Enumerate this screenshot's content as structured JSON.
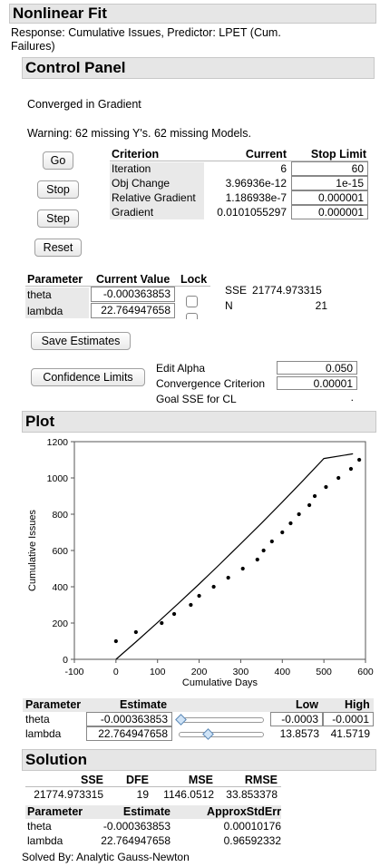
{
  "title": "Nonlinear Fit",
  "response_line1": "Response: Cumulative Issues, Predictor: LPET (Cum.",
  "response_line2": "Failures)",
  "control_panel": {
    "title": "Control Panel",
    "status": "Converged in Gradient",
    "warning": "Warning: 62 missing Y's. 62 missing Models.",
    "buttons": {
      "go": "Go",
      "stop": "Stop",
      "step": "Step",
      "reset": "Reset"
    },
    "criteria": {
      "headers": [
        "Criterion",
        "Current",
        "Stop Limit"
      ],
      "rows": [
        {
          "name": "Iteration",
          "current": "6",
          "limit": "60"
        },
        {
          "name": "Obj Change",
          "current": "3.96936e-12",
          "limit": "1e-15"
        },
        {
          "name": "Relative Gradient",
          "current": "1.186938e-7",
          "limit": "0.000001"
        },
        {
          "name": "Gradient",
          "current": "0.0101055297",
          "limit": "0.000001"
        }
      ]
    },
    "params": {
      "headers": [
        "Parameter",
        "Current Value",
        "Lock"
      ],
      "rows": [
        {
          "name": "theta",
          "value": "-0.000363853"
        },
        {
          "name": "lambda",
          "value": "22.764947658"
        }
      ]
    },
    "sse_label": "SSE",
    "sse_value": "21774.973315",
    "n_label": "N",
    "n_value": "21",
    "save_estimates": "Save Estimates",
    "confidence_limits": "Confidence Limits",
    "edit_alpha_label": "Edit Alpha",
    "edit_alpha_value": "0.050",
    "convergence_label": "Convergence Criterion",
    "convergence_value": "0.00001",
    "goal_sse_label": "Goal SSE for CL",
    "goal_sse_value": "."
  },
  "plot": {
    "title": "Plot"
  },
  "chart_data": {
    "type": "scatter",
    "xlabel": "Cumulative Days",
    "ylabel": "Cumulative Issues",
    "xlim": [
      -100,
      600
    ],
    "ylim": [
      0,
      1200
    ],
    "xticks": [
      -100,
      0,
      100,
      200,
      300,
      400,
      500,
      600
    ],
    "yticks": [
      0,
      200,
      400,
      600,
      800,
      1000,
      1200
    ],
    "points": [
      [
        0,
        100
      ],
      [
        48,
        150
      ],
      [
        110,
        200
      ],
      [
        140,
        250
      ],
      [
        180,
        300
      ],
      [
        200,
        350
      ],
      [
        235,
        400
      ],
      [
        270,
        450
      ],
      [
        305,
        500
      ],
      [
        340,
        550
      ],
      [
        355,
        600
      ],
      [
        375,
        650
      ],
      [
        400,
        700
      ],
      [
        420,
        750
      ],
      [
        440,
        800
      ],
      [
        465,
        850
      ],
      [
        478,
        900
      ],
      [
        505,
        950
      ],
      [
        535,
        1000
      ],
      [
        565,
        1050
      ],
      [
        585,
        1100
      ]
    ],
    "fit_curve": [
      [
        0,
        0
      ],
      [
        50,
        100
      ],
      [
        100,
        203
      ],
      [
        150,
        308
      ],
      [
        200,
        415
      ],
      [
        250,
        525
      ],
      [
        300,
        637
      ],
      [
        350,
        751
      ],
      [
        400,
        867
      ],
      [
        450,
        986
      ],
      [
        500,
        1107
      ],
      [
        570,
        1133
      ]
    ],
    "grid": false,
    "legend": "none"
  },
  "estimates": {
    "headers": [
      "Parameter",
      "Estimate",
      "Low",
      "High"
    ],
    "rows": [
      {
        "name": "theta",
        "estimate": "-0.000363853",
        "low": "-0.0003",
        "high": "-0.0001",
        "slider_fraction": 0.0
      },
      {
        "name": "lambda",
        "estimate": "22.764947658",
        "low": "13.8573",
        "high": "41.5719",
        "slider_fraction": 0.32
      }
    ]
  },
  "solution": {
    "title": "Solution",
    "summary_headers": [
      "SSE",
      "DFE",
      "MSE",
      "RMSE"
    ],
    "summary_values": [
      "21774.973315",
      "19",
      "1146.0512",
      "33.853378"
    ],
    "param_headers": [
      "Parameter",
      "Estimate",
      "ApproxStdErr"
    ],
    "param_rows": [
      {
        "name": "theta",
        "estimate": "-0.000363853",
        "stderr": "0.00010176"
      },
      {
        "name": "lambda",
        "estimate": "22.764947658",
        "stderr": "0.96592332"
      }
    ],
    "solved_by": "Solved By:  Analytic Gauss-Newton"
  }
}
